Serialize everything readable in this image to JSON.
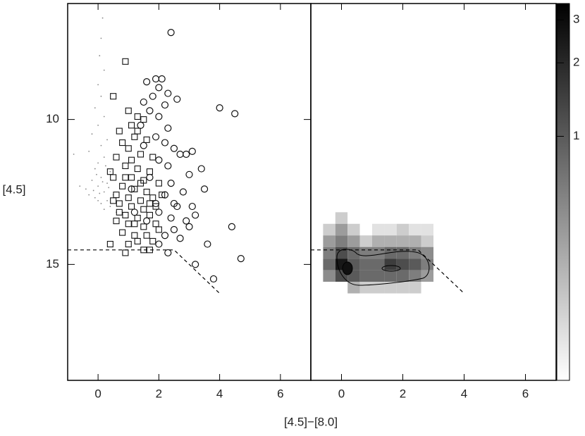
{
  "chart_data": [
    {
      "type": "scatter",
      "xlabel": "[4.5]−[8.0]",
      "ylabel": "[4.5]",
      "xlim": [
        -1,
        7
      ],
      "ylim": [
        19,
        6
      ],
      "xticks": [
        0,
        2,
        4,
        6
      ],
      "yticks": [
        10,
        15
      ],
      "cut": {
        "x": [
          -1,
          2.5,
          4
        ],
        "y": [
          14.5,
          14.5,
          16
        ]
      },
      "series": [
        {
          "marker": "dot",
          "color": "#888888",
          "x": [
            0.15,
            0.1,
            0.05,
            0.2,
            0.0,
            0.1,
            -0.1,
            0.2,
            0.0,
            -0.2,
            0.3,
            0.1,
            -0.3,
            0.2,
            0.0,
            -0.1,
            0.4,
            0.1,
            -0.2,
            0.3,
            0.0,
            -0.4,
            0.2,
            0.5,
            -0.1,
            0.3,
            0.1,
            -0.3,
            0.4,
            0.2,
            0.0,
            -0.6,
            -0.8,
            0.6,
            0.35,
            -0.05,
            0.25,
            0.05,
            0.15,
            -0.15
          ],
          "y": [
            6.5,
            7.2,
            7.8,
            8.3,
            8.8,
            9.2,
            9.6,
            9.9,
            10.2,
            10.5,
            10.7,
            10.9,
            11.1,
            11.3,
            11.5,
            11.7,
            11.8,
            12.0,
            12.1,
            12.2,
            12.3,
            12.4,
            12.5,
            12.6,
            12.7,
            12.8,
            12.9,
            12.6,
            13.0,
            13.1,
            12.8,
            12.3,
            11.2,
            13.2,
            12.35,
            11.9,
            11.6,
            12.55,
            12.15,
            12.45
          ]
        },
        {
          "marker": "square",
          "color": "#111111",
          "x": [
            0.9,
            0.5,
            1.0,
            1.3,
            0.7,
            1.1,
            1.5,
            1.2,
            0.8,
            1.6,
            1.0,
            1.4,
            0.6,
            1.8,
            0.9,
            1.3,
            1.7,
            0.5,
            1.1,
            1.5,
            2.0,
            0.8,
            1.2,
            1.6,
            0.6,
            1.0,
            1.4,
            1.8,
            2.1,
            0.7,
            1.1,
            1.5,
            1.9,
            0.9,
            1.3,
            1.7,
            0.6,
            1.0,
            1.5,
            1.9,
            0.8,
            1.2,
            1.6,
            0.4,
            1.0,
            1.5,
            1.7,
            1.3,
            0.7,
            1.4,
            0.9,
            1.7,
            1.2,
            0.5,
            2.0,
            1.8,
            0.9,
            1.1,
            1.3,
            0.4
          ],
          "y": [
            8.0,
            9.2,
            9.7,
            9.9,
            10.4,
            10.2,
            10.0,
            10.6,
            10.8,
            10.7,
            11.0,
            11.2,
            11.3,
            11.3,
            11.6,
            11.7,
            11.8,
            12.0,
            12.0,
            12.1,
            12.2,
            12.3,
            12.4,
            12.5,
            12.6,
            12.7,
            12.8,
            12.7,
            12.6,
            12.9,
            13.0,
            13.1,
            13.0,
            13.3,
            13.4,
            13.3,
            13.5,
            13.6,
            13.7,
            13.6,
            13.9,
            14.0,
            14.0,
            14.3,
            14.3,
            14.5,
            14.5,
            14.2,
            13.2,
            12.2,
            12.0,
            12.9,
            13.6,
            12.8,
            13.8,
            14.2,
            14.6,
            11.4,
            10.4,
            11.8
          ]
        },
        {
          "marker": "circle",
          "color": "#111111",
          "x": [
            2.4,
            1.9,
            2.1,
            1.6,
            2.0,
            2.3,
            1.8,
            2.6,
            1.5,
            2.2,
            1.7,
            2.0,
            4.0,
            4.5,
            1.4,
            2.3,
            1.9,
            2.2,
            1.5,
            2.5,
            2.7,
            2.9,
            3.1,
            2.0,
            2.3,
            3.4,
            3.0,
            1.7,
            2.4,
            2.8,
            3.5,
            2.2,
            1.9,
            2.6,
            3.2,
            2.4,
            2.9,
            3.0,
            2.5,
            2.2,
            2.7,
            4.4,
            3.6,
            2.0,
            2.3,
            3.2,
            3.8,
            4.7,
            1.6,
            1.2,
            2.5,
            1.1,
            3.1,
            2.0
          ],
          "y": [
            7.0,
            8.6,
            8.6,
            8.7,
            8.9,
            9.1,
            9.2,
            9.3,
            9.4,
            9.5,
            9.7,
            9.9,
            9.6,
            9.8,
            10.2,
            10.3,
            10.6,
            10.8,
            10.9,
            11.0,
            11.2,
            11.2,
            11.1,
            11.4,
            11.6,
            11.7,
            11.9,
            12.0,
            12.2,
            12.5,
            12.4,
            12.6,
            12.9,
            13.0,
            13.3,
            13.4,
            13.5,
            13.7,
            13.8,
            14.0,
            14.1,
            13.7,
            14.3,
            14.3,
            14.6,
            15.0,
            15.5,
            14.8,
            13.5,
            13.2,
            12.9,
            12.4,
            13.0,
            13.2
          ]
        }
      ]
    },
    {
      "type": "heatmap",
      "xlim": [
        -1,
        7
      ],
      "ylim": [
        19,
        6
      ],
      "xticks": [
        0,
        2,
        4,
        6
      ],
      "cut": {
        "x": [
          -1,
          2.5,
          4
        ],
        "y": [
          14.5,
          14.5,
          16
        ]
      },
      "xbins": [
        -0.6,
        -0.2,
        0.2,
        0.6,
        1.0,
        1.4,
        1.8,
        2.2,
        2.6,
        3.0,
        3.4
      ],
      "ybins": [
        13.2,
        13.6,
        14.0,
        14.4,
        14.8,
        15.2,
        15.6,
        16.0
      ],
      "values": [
        [
          0,
          0.2,
          0,
          0,
          0,
          0,
          0,
          0,
          0,
          0
        ],
        [
          0.2,
          0.4,
          0.2,
          0,
          0.15,
          0.15,
          0.2,
          0.15,
          0.15,
          0
        ],
        [
          0.4,
          0.6,
          0.4,
          0.2,
          0.3,
          0.3,
          0.3,
          0.3,
          0.2,
          0
        ],
        [
          0.6,
          1.2,
          0.8,
          0.6,
          0.6,
          0.8,
          0.8,
          0.6,
          0.5,
          0
        ],
        [
          0.8,
          2.5,
          1.0,
          0.8,
          0.8,
          1.5,
          1.2,
          1.0,
          0.6,
          0
        ],
        [
          0.5,
          1.2,
          1.0,
          0.8,
          0.8,
          0.8,
          0.8,
          0.6,
          0.4,
          0
        ],
        [
          0,
          0,
          0.3,
          0.2,
          0.2,
          0.2,
          0.2,
          0.2,
          0,
          0
        ]
      ],
      "clim": [
        0.1,
        3.5
      ],
      "cscale": "log",
      "cticks": [
        1,
        2,
        3
      ]
    }
  ]
}
